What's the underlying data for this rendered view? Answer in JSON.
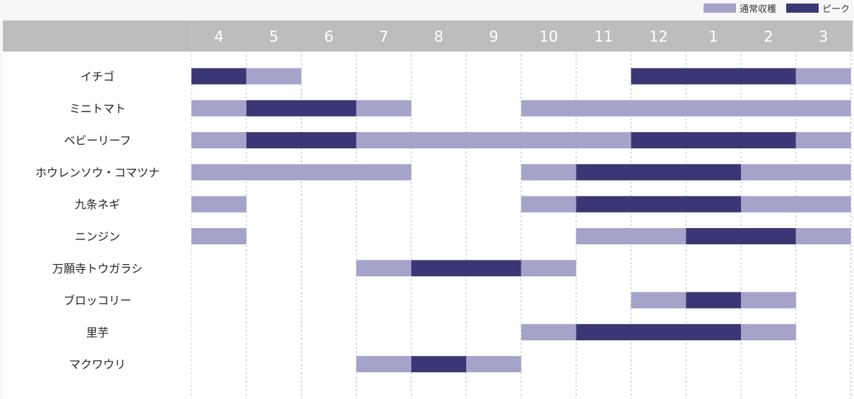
{
  "legend": {
    "normal_label": "通常収穫",
    "peak_label": "ピーク",
    "normal_color": "#a5a3ca",
    "peak_color": "#3b3775"
  },
  "chart_data": {
    "type": "gantt",
    "months": [
      "4",
      "5",
      "6",
      "7",
      "8",
      "9",
      "10",
      "11",
      "12",
      "1",
      "2",
      "3"
    ],
    "rows": [
      {
        "label": "イチゴ",
        "segments": [
          {
            "from": "4",
            "to": "4",
            "kind": "peak"
          },
          {
            "from": "5",
            "to": "5",
            "kind": "normal"
          },
          {
            "from": "12",
            "to": "2",
            "kind": "peak"
          },
          {
            "from": "3",
            "to": "3",
            "kind": "normal"
          }
        ]
      },
      {
        "label": "ミニトマト",
        "segments": [
          {
            "from": "4",
            "to": "4",
            "kind": "normal"
          },
          {
            "from": "5",
            "to": "6",
            "kind": "peak"
          },
          {
            "from": "7",
            "to": "7",
            "kind": "normal"
          },
          {
            "from": "10",
            "to": "3",
            "kind": "normal"
          }
        ]
      },
      {
        "label": "ベビーリーフ",
        "segments": [
          {
            "from": "4",
            "to": "4",
            "kind": "normal"
          },
          {
            "from": "5",
            "to": "6",
            "kind": "peak"
          },
          {
            "from": "7",
            "to": "11",
            "kind": "normal"
          },
          {
            "from": "12",
            "to": "2",
            "kind": "peak"
          },
          {
            "from": "3",
            "to": "3",
            "kind": "normal"
          }
        ]
      },
      {
        "label": "ホウレンソウ・コマツナ",
        "segments": [
          {
            "from": "4",
            "to": "7",
            "kind": "normal"
          },
          {
            "from": "10",
            "to": "10",
            "kind": "normal"
          },
          {
            "from": "11",
            "to": "1",
            "kind": "peak"
          },
          {
            "from": "2",
            "to": "3",
            "kind": "normal"
          }
        ]
      },
      {
        "label": "九条ネギ",
        "segments": [
          {
            "from": "4",
            "to": "4",
            "kind": "normal"
          },
          {
            "from": "10",
            "to": "10",
            "kind": "normal"
          },
          {
            "from": "11",
            "to": "1",
            "kind": "peak"
          },
          {
            "from": "2",
            "to": "3",
            "kind": "normal"
          }
        ]
      },
      {
        "label": "ニンジン",
        "segments": [
          {
            "from": "4",
            "to": "4",
            "kind": "normal"
          },
          {
            "from": "11",
            "to": "12",
            "kind": "normal"
          },
          {
            "from": "1",
            "to": "2",
            "kind": "peak"
          },
          {
            "from": "3",
            "to": "3",
            "kind": "normal"
          }
        ]
      },
      {
        "label": "万願寺トウガラシ",
        "segments": [
          {
            "from": "7",
            "to": "7",
            "kind": "normal"
          },
          {
            "from": "8",
            "to": "9",
            "kind": "peak"
          },
          {
            "from": "10",
            "to": "10",
            "kind": "normal"
          }
        ]
      },
      {
        "label": "ブロッコリー",
        "segments": [
          {
            "from": "12",
            "to": "12",
            "kind": "normal"
          },
          {
            "from": "1",
            "to": "1",
            "kind": "peak"
          },
          {
            "from": "2",
            "to": "2",
            "kind": "normal"
          }
        ]
      },
      {
        "label": "里芋",
        "segments": [
          {
            "from": "10",
            "to": "10",
            "kind": "normal"
          },
          {
            "from": "11",
            "to": "1",
            "kind": "peak"
          },
          {
            "from": "2",
            "to": "2",
            "kind": "normal"
          }
        ]
      },
      {
        "label": "マクワウリ",
        "segments": [
          {
            "from": "7",
            "to": "7",
            "kind": "normal"
          },
          {
            "from": "8",
            "to": "8",
            "kind": "peak"
          },
          {
            "from": "9",
            "to": "9",
            "kind": "normal"
          }
        ]
      }
    ]
  }
}
